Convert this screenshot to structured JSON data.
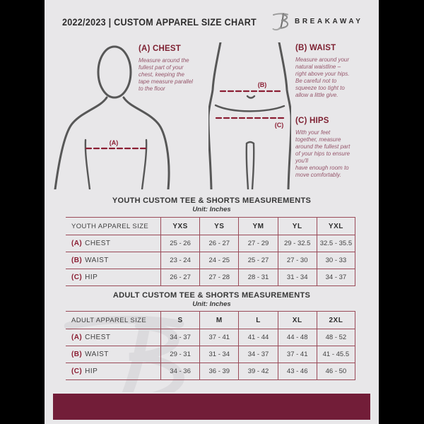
{
  "header": {
    "title": "2022/2023  |  CUSTOM APPAREL SIZE CHART",
    "brand": "BREAKAWAY"
  },
  "guide": {
    "chest": {
      "heading": "(A) CHEST",
      "marker": "(A)",
      "body": "Measure around the\nfullest part of your\nchest, keeping the\ntape measure parallel\nto the floor"
    },
    "waist": {
      "heading": "(B) WAIST",
      "marker": "(B)",
      "body": "Measure around your\nnatural waistline –\nright above your hips.\nBe careful not to\nsqueeze too tight to\nallow a little give."
    },
    "hips": {
      "heading": "(C) HIPS",
      "marker": "(C)",
      "body": "With your feet\ntogether, measure\naround the fullest part\nof your hips to ensure\nyou'll\nhave enough room to\nmove comfortably."
    }
  },
  "youth": {
    "title": "YOUTH CUSTOM TEE & SHORTS MEASUREMENTS",
    "unit": "Unit: Inches",
    "size_label": "YOUTH APPAREL SIZE",
    "sizes": [
      "YXS",
      "YS",
      "YM",
      "YL",
      "YXL"
    ],
    "rows": [
      {
        "prefix": "(A)",
        "label": "CHEST",
        "values": [
          "25 - 26",
          "26 - 27",
          "27 - 29",
          "29 - 32.5",
          "32.5 - 35.5"
        ]
      },
      {
        "prefix": "(B)",
        "label": "WAIST",
        "values": [
          "23 - 24",
          "24 - 25",
          "25 - 27",
          "27 - 30",
          "30 - 33"
        ]
      },
      {
        "prefix": "(C)",
        "label": "HIP",
        "values": [
          "26 - 27",
          "27 - 28",
          "28 - 31",
          "31 - 34",
          "34 - 37"
        ]
      }
    ]
  },
  "adult": {
    "title": "ADULT CUSTOM TEE & SHORTS MEASUREMENTS",
    "unit": "Unit: Inches",
    "size_label": "ADULT APPAREL SIZE",
    "sizes": [
      "S",
      "M",
      "L",
      "XL",
      "2XL"
    ],
    "rows": [
      {
        "prefix": "(A)",
        "label": "CHEST",
        "values": [
          "34 - 37",
          "37 - 41",
          "41 - 44",
          "44 - 48",
          "48 - 52"
        ]
      },
      {
        "prefix": "(B)",
        "label": "WAIST",
        "values": [
          "29 - 31",
          "31 - 34",
          "34 - 37",
          "37 - 41",
          "41 - 45.5"
        ]
      },
      {
        "prefix": "(C)",
        "label": "HIP",
        "values": [
          "34 - 36",
          "36 - 39",
          "39 - 42",
          "43 - 46",
          "46 - 50"
        ]
      }
    ]
  },
  "colors": {
    "accent_maroon": "#8b1e33",
    "footer_bar": "#721d38",
    "document_background": "#e8e7e9",
    "table_border": "#9a4a58",
    "outside_background": "#000000"
  }
}
